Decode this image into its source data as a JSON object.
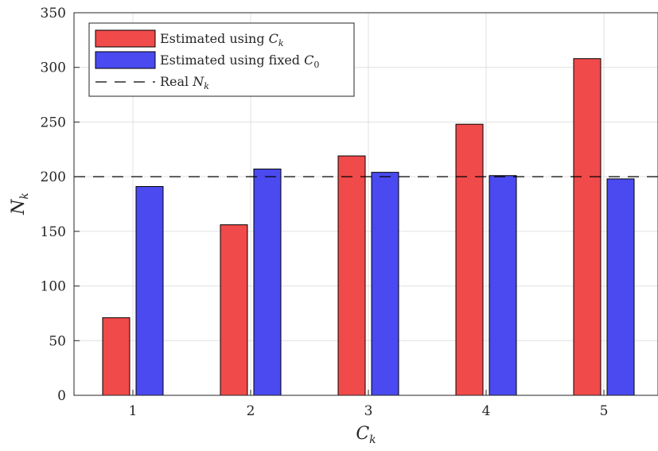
{
  "chart_data": {
    "type": "bar",
    "categories": [
      "1",
      "2",
      "3",
      "4",
      "5"
    ],
    "series": [
      {
        "name": "Estimated using C_k",
        "values": [
          71,
          156,
          219,
          248,
          308
        ],
        "color": "#f04a4a"
      },
      {
        "name": "Estimated using fixed C_0",
        "values": [
          191,
          207,
          204,
          201,
          198
        ],
        "color": "#4a4af0"
      }
    ],
    "reference_line": {
      "name": "Real N_k",
      "value": 200,
      "style": "dashed",
      "color": "#000000"
    },
    "yticks": [
      "0",
      "50",
      "100",
      "150",
      "200",
      "250",
      "300",
      "350"
    ],
    "ylim": [
      0,
      350
    ],
    "xlabel": {
      "main": "C",
      "sub": "k"
    },
    "ylabel": {
      "main": "N",
      "sub": "k"
    },
    "grid": true,
    "legend_position": "top-left",
    "legend": [
      {
        "prefix": "Estimated using ",
        "symbol": "C",
        "sub": "k"
      },
      {
        "prefix": "Estimated using fixed ",
        "symbol": "C",
        "sub": "0"
      },
      {
        "prefix": "Real ",
        "symbol": "N",
        "sub": "k"
      }
    ]
  }
}
